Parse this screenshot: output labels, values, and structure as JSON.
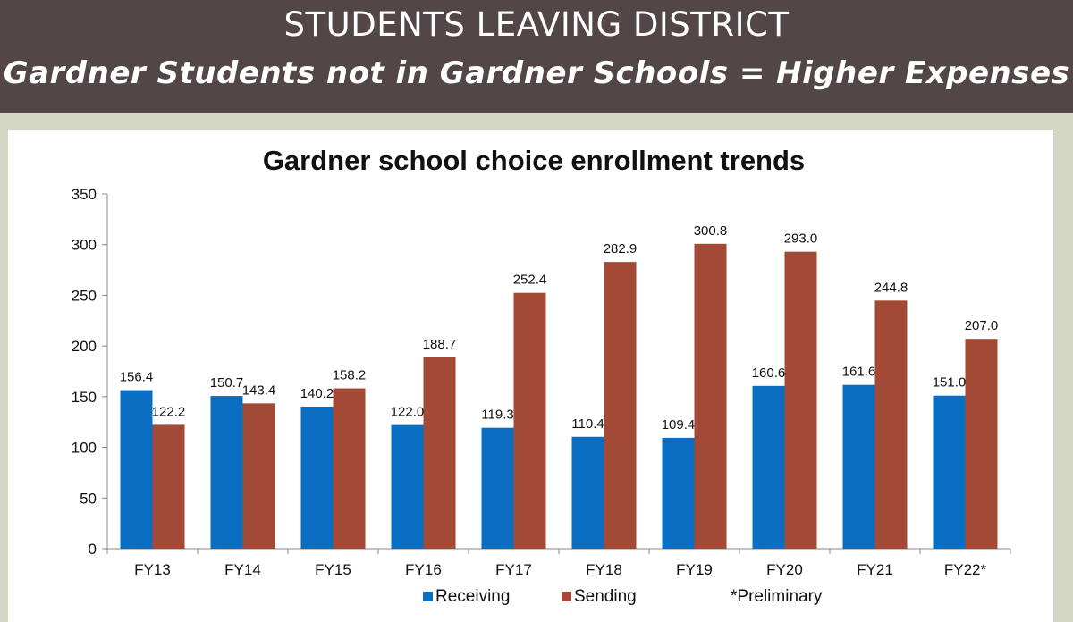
{
  "banner": {
    "title": "STUDENTS LEAVING DISTRICT",
    "subtitle": "Gardner Students not in Gardner Schools = Higher Expenses"
  },
  "chart_data": {
    "type": "bar",
    "title": "Gardner school choice enrollment trends",
    "categories": [
      "FY13",
      "FY14",
      "FY15",
      "FY16",
      "FY17",
      "FY18",
      "FY19",
      "FY20",
      "FY21",
      "FY22*"
    ],
    "series": [
      {
        "name": "Receiving",
        "color": "#0a6fc2",
        "values": [
          156.4,
          150.7,
          140.2,
          122.0,
          119.3,
          110.4,
          109.4,
          160.6,
          161.6,
          151.0
        ]
      },
      {
        "name": "Sending",
        "color": "#a34a36",
        "values": [
          122.2,
          143.4,
          158.2,
          188.7,
          252.4,
          282.9,
          300.8,
          293.0,
          244.8,
          207.0
        ]
      }
    ],
    "ylim": [
      0,
      350
    ],
    "yticks": [
      0,
      50,
      100,
      150,
      200,
      250,
      300,
      350
    ],
    "xlabel": "",
    "ylabel": "",
    "grid": false,
    "legend_position": "bottom",
    "note": "*Preliminary"
  }
}
